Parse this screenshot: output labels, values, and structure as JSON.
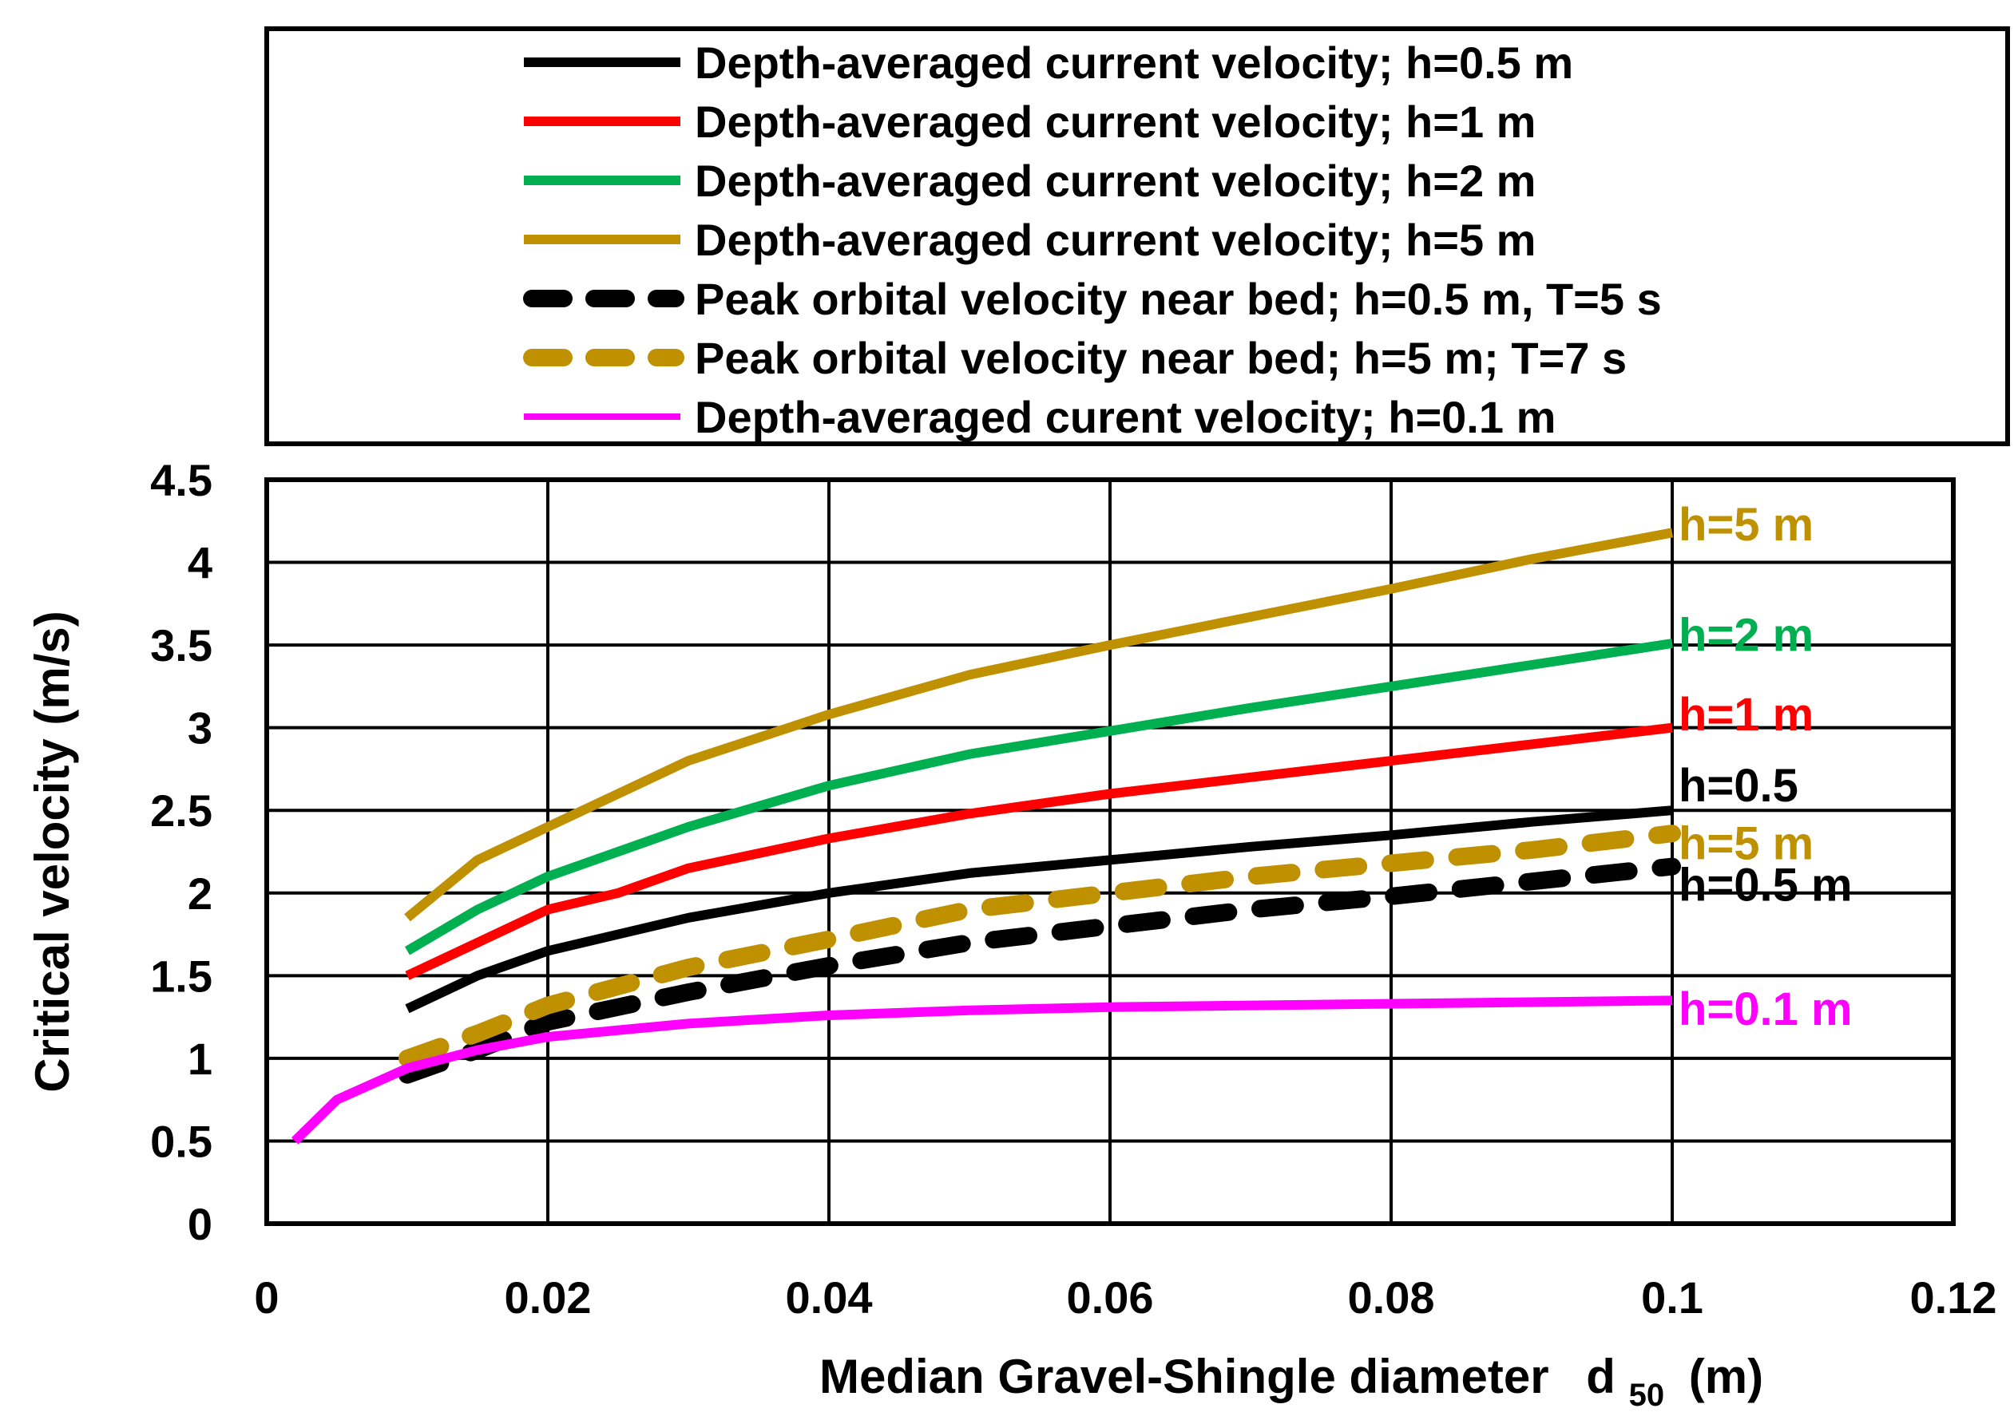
{
  "chart_data": {
    "type": "line",
    "title": "",
    "xlabel": "Median Gravel-Shingle diameter",
    "xlabel_symbol": "d",
    "xlabel_subscript": "50",
    "xlabel_unit": "(m)",
    "ylabel": "Critical velocity (m/s)",
    "xlim": [
      0,
      0.12
    ],
    "ylim": [
      0,
      4.5
    ],
    "x_ticks": [
      "0",
      "0.02",
      "0.04",
      "0.06",
      "0.08",
      "0.1",
      "0.12"
    ],
    "y_ticks": [
      "0",
      "0.5",
      "1",
      "1.5",
      "2",
      "2.5",
      "3",
      "3.5",
      "4",
      "4.5"
    ],
    "x_tick_values": [
      0,
      0.02,
      0.04,
      0.06,
      0.08,
      0.1,
      0.12
    ],
    "y_tick_values": [
      0,
      0.5,
      1,
      1.5,
      2,
      2.5,
      3,
      3.5,
      4,
      4.5
    ],
    "grid": true,
    "legend_position": "top",
    "series": [
      {
        "name": "Depth-averaged current velocity; h=0.5 m",
        "color": "#000000",
        "style": "solid",
        "end_label": "h=0.5",
        "x": [
          0.01,
          0.015,
          0.02,
          0.03,
          0.04,
          0.05,
          0.06,
          0.07,
          0.08,
          0.09,
          0.1
        ],
        "y": [
          1.3,
          1.5,
          1.65,
          1.85,
          2.0,
          2.12,
          2.2,
          2.28,
          2.35,
          2.43,
          2.5
        ]
      },
      {
        "name": "Depth-averaged current velocity; h=1 m",
        "color": "#ff0000",
        "style": "solid",
        "end_label": "h=1 m",
        "x": [
          0.01,
          0.015,
          0.02,
          0.025,
          0.03,
          0.04,
          0.05,
          0.06,
          0.07,
          0.08,
          0.09,
          0.1
        ],
        "y": [
          1.5,
          1.7,
          1.9,
          2.0,
          2.15,
          2.33,
          2.48,
          2.6,
          2.7,
          2.8,
          2.9,
          3.0
        ]
      },
      {
        "name": "Depth-averaged current velocity; h=2 m",
        "color": "#00b050",
        "style": "solid",
        "end_label": "h=2 m",
        "x": [
          0.01,
          0.015,
          0.02,
          0.03,
          0.04,
          0.05,
          0.06,
          0.07,
          0.08,
          0.09,
          0.1
        ],
        "y": [
          1.65,
          1.9,
          2.1,
          2.4,
          2.65,
          2.84,
          2.98,
          3.12,
          3.25,
          3.38,
          3.51
        ]
      },
      {
        "name": "Depth-averaged current velocity; h=5 m",
        "color": "#bf9000",
        "style": "solid",
        "end_label": "h=5 m",
        "x": [
          0.01,
          0.015,
          0.02,
          0.03,
          0.04,
          0.05,
          0.06,
          0.07,
          0.08,
          0.09,
          0.1
        ],
        "y": [
          1.85,
          2.2,
          2.4,
          2.8,
          3.08,
          3.32,
          3.5,
          3.67,
          3.84,
          4.02,
          4.18
        ]
      },
      {
        "name": "Peak orbital velocity near bed; h=0.5 m, T=5 s",
        "color": "#000000",
        "style": "dashed",
        "end_label": "h=0.5 m",
        "x": [
          0.01,
          0.015,
          0.02,
          0.03,
          0.04,
          0.05,
          0.06,
          0.07,
          0.08,
          0.09,
          0.1
        ],
        "y": [
          0.9,
          1.05,
          1.22,
          1.4,
          1.56,
          1.7,
          1.8,
          1.9,
          1.98,
          2.07,
          2.16
        ]
      },
      {
        "name": "Peak orbital velocity near bed; h=5 m; T=7 s",
        "color": "#bf9000",
        "style": "dashed",
        "end_label": "h=5 m",
        "x": [
          0.01,
          0.015,
          0.02,
          0.03,
          0.04,
          0.05,
          0.06,
          0.07,
          0.08,
          0.09,
          0.1
        ],
        "y": [
          1.0,
          1.15,
          1.32,
          1.55,
          1.72,
          1.9,
          2.0,
          2.1,
          2.18,
          2.26,
          2.36
        ]
      },
      {
        "name": "Depth-averaged curent velocity; h=0.1 m",
        "color": "#ff00ff",
        "style": "solid",
        "end_label": "h=0.1 m",
        "x": [
          0.002,
          0.005,
          0.01,
          0.015,
          0.02,
          0.03,
          0.04,
          0.05,
          0.06,
          0.07,
          0.08,
          0.09,
          0.1
        ],
        "y": [
          0.5,
          0.75,
          0.94,
          1.05,
          1.13,
          1.21,
          1.26,
          1.29,
          1.31,
          1.32,
          1.33,
          1.34,
          1.35
        ]
      }
    ]
  }
}
